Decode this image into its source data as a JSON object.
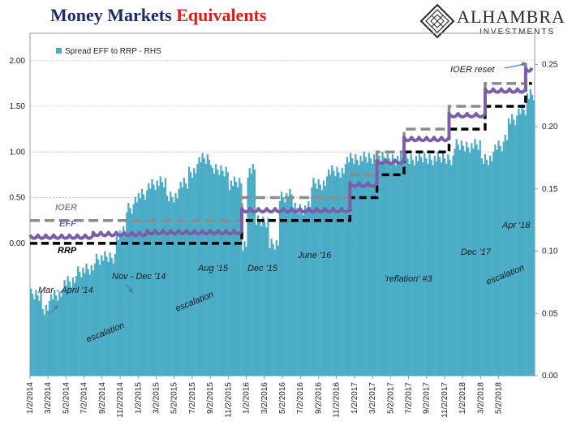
{
  "header": {
    "title_part1": "Money Markets",
    "title_part2": "Equivalents"
  },
  "logo": {
    "name": "ALHAMBRA",
    "sub": "INVESTMENTS",
    "icon": "diamond-lattice-icon"
  },
  "chart_data": {
    "type": "bar+line",
    "title": "Money Markets Equivalents",
    "legend": {
      "label": "Spread EFF to RRP - RHS",
      "placement": "top-left"
    },
    "colors": {
      "bars": "#4aacc6",
      "eff": "#7b5ea7",
      "ioer": "#8c8c8c",
      "rrp": "#000000"
    },
    "left_axis": {
      "ticks": [
        "0.00",
        "0.50",
        "1.00",
        "1.50",
        "2.00"
      ],
      "ylim": [
        -1.45,
        2.3
      ]
    },
    "right_axis": {
      "ticks": [
        "0.00",
        "0.05",
        "0.10",
        "0.15",
        "0.20",
        "0.25"
      ],
      "ylim": [
        0,
        0.275
      ]
    },
    "x_tick_labels": [
      "1/2/2014",
      "3/2/2014",
      "5/2/2014",
      "7/2/2014",
      "9/2/2014",
      "11/2/2014",
      "1/2/2015",
      "3/2/2015",
      "5/2/2015",
      "7/2/2015",
      "9/2/2015",
      "11/2/2015",
      "1/2/2016",
      "3/2/2016",
      "5/2/2016",
      "7/2/2016",
      "9/2/2016",
      "11/2/2016",
      "1/2/2017",
      "3/2/2017",
      "5/2/2017",
      "7/2/2017",
      "9/2/2017",
      "11/2/2017",
      "1/2/2018",
      "3/2/2018",
      "5/2/2018"
    ],
    "bars_spread": {
      "months": [
        0,
        1.2,
        2.2,
        3.5,
        5,
        7,
        9.5,
        10.5,
        11.5,
        13,
        15,
        16.5,
        17.5,
        18.5,
        20,
        22,
        23.5,
        24,
        25,
        26.5,
        27.5,
        29,
        31,
        33,
        35,
        38,
        42,
        46,
        47,
        48,
        50,
        51.5,
        52.5,
        53,
        54,
        55,
        56
      ],
      "values": [
        0.07,
        0.06,
        0.07,
        0.08,
        0.09,
        0.1,
        0.12,
        0.14,
        0.15,
        0.16,
        0.15,
        0.16,
        0.17,
        0.18,
        0.17,
        0.16,
        0.11,
        0.17,
        0.13,
        0.11,
        0.15,
        0.14,
        0.16,
        0.17,
        0.18,
        0.18,
        0.18,
        0.18,
        0.19,
        0.19,
        0.18,
        0.19,
        0.2,
        0.21,
        0.22,
        0.23,
        0.24
      ]
    },
    "eff_steps": [
      {
        "from": 0,
        "to": 7,
        "value": 0.09
      },
      {
        "from": 7,
        "to": 13,
        "value": 0.12
      },
      {
        "from": 13,
        "to": 23.5,
        "value": 0.14
      },
      {
        "from": 23.5,
        "to": 35.5,
        "value": 0.38
      },
      {
        "from": 35.5,
        "to": 38.5,
        "value": 0.66
      },
      {
        "from": 38.5,
        "to": 41.5,
        "value": 0.91
      },
      {
        "from": 41.5,
        "to": 46.5,
        "value": 1.16
      },
      {
        "from": 46.5,
        "to": 50.5,
        "value": 1.42
      },
      {
        "from": 50.5,
        "to": 55,
        "value": 1.69
      },
      {
        "from": 55,
        "to": 55.7,
        "value": 1.92
      }
    ],
    "ioer_steps": [
      {
        "from": 0,
        "to": 23.5,
        "value": 0.25
      },
      {
        "from": 23.5,
        "to": 35.5,
        "value": 0.5
      },
      {
        "from": 35.5,
        "to": 38.5,
        "value": 0.75
      },
      {
        "from": 38.5,
        "to": 41.5,
        "value": 1.0
      },
      {
        "from": 41.5,
        "to": 46.5,
        "value": 1.25
      },
      {
        "from": 46.5,
        "to": 50.5,
        "value": 1.5
      },
      {
        "from": 50.5,
        "to": 55,
        "value": 1.75
      },
      {
        "from": 55,
        "to": 55.7,
        "value": 1.95
      }
    ],
    "rrp_steps": [
      {
        "from": 0,
        "to": 23.5,
        "value": 0.0
      },
      {
        "from": 23.5,
        "to": 35.5,
        "value": 0.25
      },
      {
        "from": 35.5,
        "to": 38.5,
        "value": 0.5
      },
      {
        "from": 38.5,
        "to": 41.5,
        "value": 0.75
      },
      {
        "from": 41.5,
        "to": 46.5,
        "value": 1.0
      },
      {
        "from": 46.5,
        "to": 50.5,
        "value": 1.25
      },
      {
        "from": 50.5,
        "to": 55,
        "value": 1.5
      },
      {
        "from": 55,
        "to": 55.7,
        "value": 1.75
      }
    ],
    "series_labels": {
      "ioer": "IOER",
      "eff": "EFF",
      "rrp": "RRP"
    },
    "annotations": [
      "Mar - April '14",
      "Nov - Dec '14",
      "Aug '15",
      "Dec '15",
      "June '16",
      "Dec '17",
      "Apr '18",
      "IOER reset",
      "'reflation' #3",
      "escalation",
      "escalation",
      "escalation"
    ]
  }
}
